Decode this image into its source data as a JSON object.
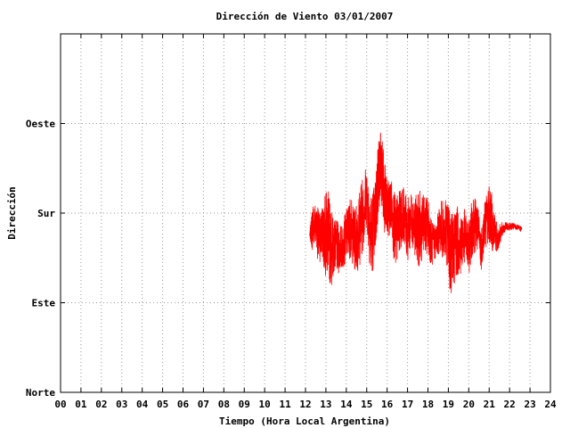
{
  "chart_data": {
    "type": "line",
    "title": "Dirección de Viento 03/01/2007",
    "xlabel": "Tiempo (Hora Local Argentina)",
    "ylabel": "Dirección",
    "xlim": [
      0,
      24
    ],
    "ylim": [
      0,
      4
    ],
    "x_ticks": [
      "00",
      "01",
      "02",
      "03",
      "04",
      "05",
      "06",
      "07",
      "08",
      "09",
      "10",
      "11",
      "12",
      "13",
      "14",
      "15",
      "16",
      "17",
      "18",
      "19",
      "20",
      "21",
      "22",
      "23",
      "24"
    ],
    "y_ticks": [
      {
        "value": 0,
        "label": "Norte"
      },
      {
        "value": 1,
        "label": "Este"
      },
      {
        "value": 2,
        "label": "Sur"
      },
      {
        "value": 3,
        "label": "Oeste"
      }
    ],
    "grid": true,
    "legend": "none",
    "series": [
      {
        "color": "#ff0000",
        "x": [
          12.2,
          12.35,
          12.5,
          12.65,
          12.8,
          12.95,
          13.1,
          13.25,
          13.4,
          13.6,
          13.8,
          14.0,
          14.2,
          14.4,
          14.6,
          14.8,
          15.0,
          15.2,
          15.4,
          15.55,
          15.7,
          15.85,
          16.0,
          16.2,
          16.4,
          16.6,
          16.8,
          17.0,
          17.2,
          17.4,
          17.6,
          17.8,
          18.0,
          18.2,
          18.4,
          18.6,
          18.8,
          19.0,
          19.1,
          19.25,
          19.4,
          19.6,
          19.8,
          20.0,
          20.2,
          20.4,
          20.6,
          20.8,
          21.0,
          21.2,
          21.4,
          21.6,
          21.8,
          22.0,
          22.2,
          22.4,
          22.6
        ],
        "y": [
          1.75,
          1.85,
          1.9,
          1.7,
          1.8,
          1.75,
          1.8,
          1.6,
          1.65,
          1.6,
          1.62,
          1.75,
          1.85,
          1.7,
          1.8,
          2.0,
          2.2,
          1.75,
          1.9,
          2.35,
          2.6,
          2.2,
          2.0,
          2.1,
          1.75,
          1.9,
          2.0,
          1.8,
          1.95,
          1.85,
          1.8,
          1.9,
          1.85,
          1.65,
          1.7,
          1.85,
          1.8,
          1.75,
          1.5,
          1.6,
          1.7,
          1.65,
          1.75,
          1.6,
          1.9,
          1.85,
          1.6,
          1.9,
          2.0,
          1.85,
          1.7,
          1.8,
          1.85,
          1.85,
          1.85,
          1.84,
          1.82
        ],
        "noise": [
          0.0,
          0.3,
          0.2,
          0.35,
          0.25,
          0.45,
          0.5,
          0.45,
          0.3,
          0.3,
          0.25,
          0.3,
          0.35,
          0.35,
          0.45,
          0.45,
          0.35,
          0.5,
          0.45,
          0.45,
          0.4,
          0.45,
          0.35,
          0.3,
          0.45,
          0.35,
          0.3,
          0.35,
          0.3,
          0.35,
          0.45,
          0.3,
          0.35,
          0.25,
          0.2,
          0.3,
          0.35,
          0.4,
          0.45,
          0.45,
          0.4,
          0.35,
          0.3,
          0.3,
          0.35,
          0.3,
          0.25,
          0.3,
          0.35,
          0.3,
          0.15,
          0.1,
          0.05,
          0.04,
          0.04,
          0.03,
          0.03
        ]
      }
    ]
  }
}
